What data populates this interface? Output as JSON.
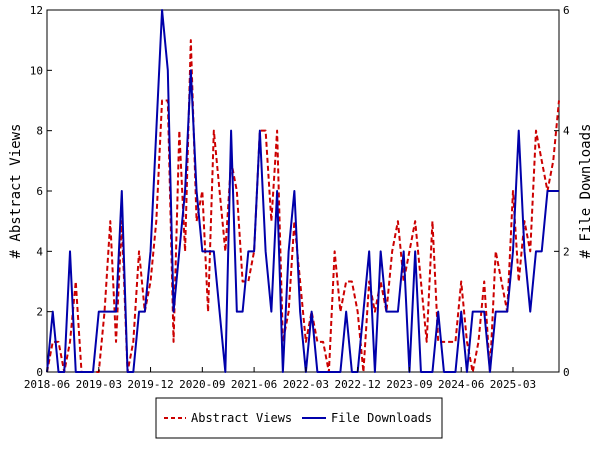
{
  "chart_data": {
    "type": "line",
    "title": "",
    "xlabel": "",
    "ylabel": "# Abstract Views",
    "y2label": "# File Downloads",
    "x_range": [
      "2018-06",
      "2025-08"
    ],
    "ylim": [
      0,
      12
    ],
    "y2lim": [
      0,
      6
    ],
    "y_ticks": [
      "0",
      "2",
      "4",
      "6",
      "8",
      "10",
      "12"
    ],
    "y2_ticks": [
      "0",
      "2",
      "4",
      "6"
    ],
    "x_ticks": [
      "2018-06",
      "2019-03",
      "2019-12",
      "2020-09",
      "2021-06",
      "2022-03",
      "2022-12",
      "2023-09",
      "2024-06",
      "2025-03"
    ],
    "grid": false,
    "legend_position": "bottom",
    "series": [
      {
        "name": "Abstract Views",
        "axis": "left",
        "color": "#cc0000",
        "style": "dashed",
        "points": [
          [
            "2018-06",
            0
          ],
          [
            "2018-07",
            1
          ],
          [
            "2018-08",
            1
          ],
          [
            "2018-09",
            0
          ],
          [
            "2018-10",
            1
          ],
          [
            "2018-11",
            3
          ],
          [
            "2018-12",
            0
          ],
          [
            "2019-01",
            0
          ],
          [
            "2019-02",
            0
          ],
          [
            "2019-03",
            0
          ],
          [
            "2019-04",
            2
          ],
          [
            "2019-05",
            5
          ],
          [
            "2019-06",
            1
          ],
          [
            "2019-07",
            5
          ],
          [
            "2019-08",
            0
          ],
          [
            "2019-09",
            1
          ],
          [
            "2019-10",
            4
          ],
          [
            "2019-11",
            2
          ],
          [
            "2019-12",
            3
          ],
          [
            "2020-01",
            5
          ],
          [
            "2020-02",
            9
          ],
          [
            "2020-03",
            9
          ],
          [
            "2020-04",
            1
          ],
          [
            "2020-05",
            8
          ],
          [
            "2020-06",
            4
          ],
          [
            "2020-07",
            11
          ],
          [
            "2020-08",
            5
          ],
          [
            "2020-09",
            6
          ],
          [
            "2020-10",
            2
          ],
          [
            "2020-11",
            8
          ],
          [
            "2020-12",
            6
          ],
          [
            "2021-01",
            4
          ],
          [
            "2021-02",
            7
          ],
          [
            "2021-03",
            6
          ],
          [
            "2021-04",
            3
          ],
          [
            "2021-05",
            3
          ],
          [
            "2021-06",
            4
          ],
          [
            "2021-07",
            8
          ],
          [
            "2021-08",
            8
          ],
          [
            "2021-09",
            5
          ],
          [
            "2021-10",
            8
          ],
          [
            "2021-11",
            1
          ],
          [
            "2021-12",
            2
          ],
          [
            "2022-01",
            5
          ],
          [
            "2022-02",
            3
          ],
          [
            "2022-03",
            1
          ],
          [
            "2022-04",
            2
          ],
          [
            "2022-05",
            1
          ],
          [
            "2022-06",
            1
          ],
          [
            "2022-07",
            0
          ],
          [
            "2022-08",
            4
          ],
          [
            "2022-09",
            2
          ],
          [
            "2022-10",
            3
          ],
          [
            "2022-11",
            3
          ],
          [
            "2022-12",
            2
          ],
          [
            "2023-01",
            0
          ],
          [
            "2023-02",
            3
          ],
          [
            "2023-03",
            2
          ],
          [
            "2023-04",
            3
          ],
          [
            "2023-05",
            2
          ],
          [
            "2023-06",
            4
          ],
          [
            "2023-07",
            5
          ],
          [
            "2023-08",
            3
          ],
          [
            "2023-09",
            4
          ],
          [
            "2023-10",
            5
          ],
          [
            "2023-11",
            3
          ],
          [
            "2023-12",
            1
          ],
          [
            "2024-01",
            5
          ],
          [
            "2024-02",
            1
          ],
          [
            "2024-03",
            1
          ],
          [
            "2024-04",
            1
          ],
          [
            "2024-05",
            1
          ],
          [
            "2024-06",
            3
          ],
          [
            "2024-07",
            1
          ],
          [
            "2024-08",
            0
          ],
          [
            "2024-09",
            1
          ],
          [
            "2024-10",
            3
          ],
          [
            "2024-11",
            0
          ],
          [
            "2024-12",
            4
          ],
          [
            "2025-01",
            3
          ],
          [
            "2025-02",
            2
          ],
          [
            "2025-03",
            6
          ],
          [
            "2025-04",
            3
          ],
          [
            "2025-05",
            5
          ],
          [
            "2025-06",
            4
          ],
          [
            "2025-07",
            8
          ],
          [
            "2025-08",
            7
          ],
          [
            "2025-09",
            6
          ],
          [
            "2025-10",
            7
          ],
          [
            "2025-11",
            9
          ]
        ]
      },
      {
        "name": "File Downloads",
        "axis": "right",
        "color": "#0000aa",
        "style": "solid",
        "points": [
          [
            "2018-06",
            0
          ],
          [
            "2018-07",
            1
          ],
          [
            "2018-08",
            0
          ],
          [
            "2018-09",
            0
          ],
          [
            "2018-10",
            2
          ],
          [
            "2018-11",
            0
          ],
          [
            "2018-12",
            0
          ],
          [
            "2019-01",
            0
          ],
          [
            "2019-02",
            0
          ],
          [
            "2019-03",
            1
          ],
          [
            "2019-04",
            1
          ],
          [
            "2019-05",
            1
          ],
          [
            "2019-06",
            1
          ],
          [
            "2019-07",
            3
          ],
          [
            "2019-08",
            0
          ],
          [
            "2019-09",
            0
          ],
          [
            "2019-10",
            1
          ],
          [
            "2019-11",
            1
          ],
          [
            "2019-12",
            2
          ],
          [
            "2020-01",
            4
          ],
          [
            "2020-02",
            6
          ],
          [
            "2020-03",
            5
          ],
          [
            "2020-04",
            1
          ],
          [
            "2020-05",
            2
          ],
          [
            "2020-06",
            3
          ],
          [
            "2020-07",
            5
          ],
          [
            "2020-08",
            3
          ],
          [
            "2020-09",
            2
          ],
          [
            "2020-10",
            2
          ],
          [
            "2020-11",
            2
          ],
          [
            "2020-12",
            1
          ],
          [
            "2021-01",
            0
          ],
          [
            "2021-02",
            4
          ],
          [
            "2021-03",
            1
          ],
          [
            "2021-04",
            1
          ],
          [
            "2021-05",
            2
          ],
          [
            "2021-06",
            2
          ],
          [
            "2021-07",
            4
          ],
          [
            "2021-08",
            2
          ],
          [
            "2021-09",
            1
          ],
          [
            "2021-10",
            3
          ],
          [
            "2021-11",
            0
          ],
          [
            "2021-12",
            2
          ],
          [
            "2022-01",
            3
          ],
          [
            "2022-02",
            1
          ],
          [
            "2022-03",
            0
          ],
          [
            "2022-04",
            1
          ],
          [
            "2022-05",
            0
          ],
          [
            "2022-06",
            0
          ],
          [
            "2022-07",
            0
          ],
          [
            "2022-08",
            0
          ],
          [
            "2022-09",
            0
          ],
          [
            "2022-10",
            1
          ],
          [
            "2022-11",
            0
          ],
          [
            "2022-12",
            0
          ],
          [
            "2023-01",
            1
          ],
          [
            "2023-02",
            2
          ],
          [
            "2023-03",
            0
          ],
          [
            "2023-04",
            2
          ],
          [
            "2023-05",
            1
          ],
          [
            "2023-06",
            1
          ],
          [
            "2023-07",
            1
          ],
          [
            "2023-08",
            2
          ],
          [
            "2023-09",
            0
          ],
          [
            "2023-10",
            2
          ],
          [
            "2023-11",
            0
          ],
          [
            "2023-12",
            0
          ],
          [
            "2024-01",
            0
          ],
          [
            "2024-02",
            1
          ],
          [
            "2024-03",
            0
          ],
          [
            "2024-04",
            0
          ],
          [
            "2024-05",
            0
          ],
          [
            "2024-06",
            1
          ],
          [
            "2024-07",
            0
          ],
          [
            "2024-08",
            1
          ],
          [
            "2024-09",
            1
          ],
          [
            "2024-10",
            1
          ],
          [
            "2024-11",
            0
          ],
          [
            "2024-12",
            1
          ],
          [
            "2025-01",
            1
          ],
          [
            "2025-02",
            1
          ],
          [
            "2025-03",
            2
          ],
          [
            "2025-04",
            4
          ],
          [
            "2025-05",
            2
          ],
          [
            "2025-06",
            1
          ],
          [
            "2025-07",
            2
          ],
          [
            "2025-08",
            2
          ],
          [
            "2025-09",
            3
          ],
          [
            "2025-10",
            3
          ],
          [
            "2025-11",
            3
          ]
        ]
      }
    ]
  },
  "legend": {
    "items": [
      {
        "label": "Abstract Views",
        "color": "#cc0000",
        "style": "dashed"
      },
      {
        "label": "File Downloads",
        "color": "#0000aa",
        "style": "solid"
      }
    ]
  }
}
